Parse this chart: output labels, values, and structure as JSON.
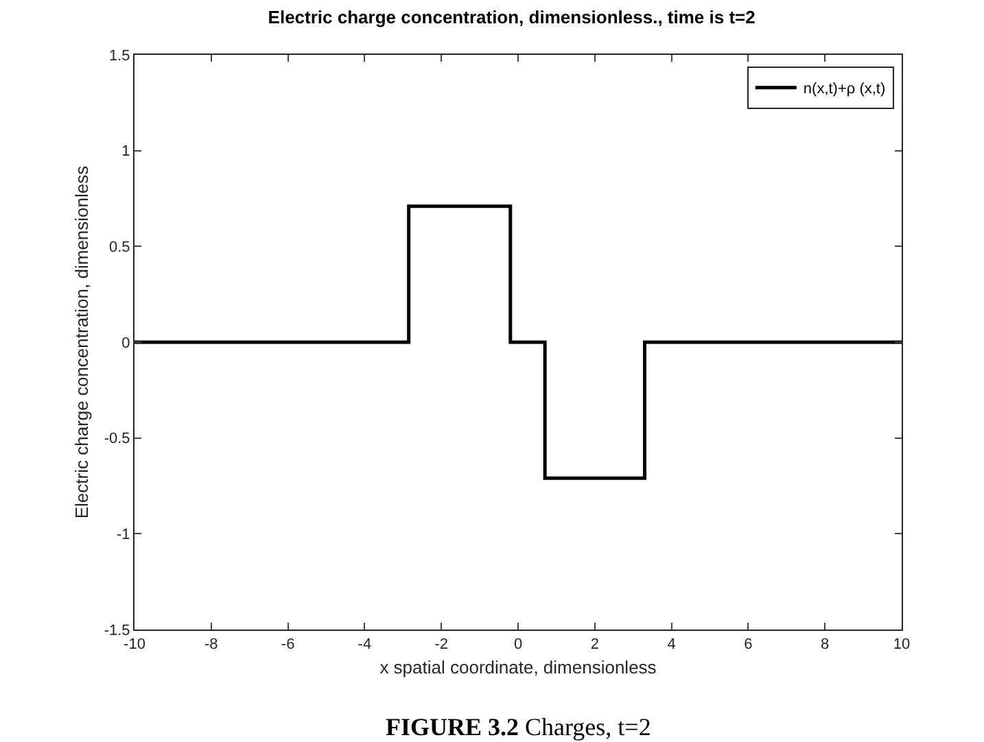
{
  "chart_data": {
    "type": "step",
    "title": "Electric charge concentration, dimensionless., time is t=2",
    "xlabel": "x spatial coordinate, dimensionless",
    "ylabel": "Electric charge concentration, dimensionless",
    "annotations": [
      "FIGURE 3.2",
      "Charges, t=2"
    ],
    "series": [
      {
        "name": "n(x,t)+ρ (x,t)",
        "color": "#000000",
        "x": [
          -10,
          -2.85,
          -0.2,
          0.7,
          3.3,
          10
        ],
        "values": [
          0,
          0.71,
          0,
          -0.71,
          0,
          0
        ]
      }
    ],
    "xlim": [
      -10,
      10
    ],
    "xticks": [
      -10,
      -8,
      -6,
      -4,
      -2,
      0,
      2,
      4,
      6,
      8,
      10
    ],
    "ylim": [
      -1.5,
      1.5
    ],
    "yticks": [
      -1.5,
      -1,
      -0.5,
      0,
      0.5,
      1,
      1.5
    ],
    "legend": "top right",
    "line_style": "solid",
    "marker": "none"
  }
}
